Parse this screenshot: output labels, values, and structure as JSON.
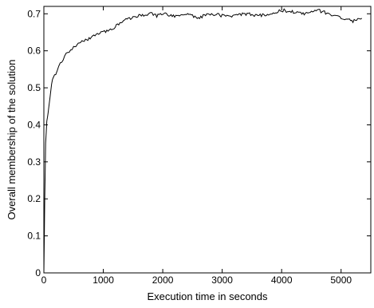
{
  "chart_data": {
    "type": "line",
    "title": "",
    "xlabel": "Execution time in seconds",
    "ylabel": "Overall membership of the solution",
    "xlim": [
      0,
      5500
    ],
    "ylim": [
      0,
      0.72
    ],
    "x_ticks": [
      0,
      1000,
      2000,
      3000,
      4000,
      5000
    ],
    "y_ticks": [
      0,
      0.1,
      0.2,
      0.3,
      0.4,
      0.5,
      0.6,
      0.7
    ],
    "x_tick_labels": [
      "0",
      "1000",
      "2000",
      "3000",
      "4000",
      "5000"
    ],
    "y_tick_labels": [
      "0",
      "0.1",
      "0.2",
      "0.3",
      "0.4",
      "0.5",
      "0.6",
      "0.7"
    ],
    "grid": false,
    "line_color": "#000000",
    "series": [
      {
        "x": [
          0,
          15,
          30,
          50,
          70,
          100,
          130,
          160,
          200,
          250,
          300,
          350,
          400,
          450,
          500,
          600,
          700,
          800,
          900,
          1000,
          1100,
          1200,
          1300,
          1400,
          1500,
          1600,
          1700,
          1800,
          1900,
          2000,
          2200,
          2400,
          2600,
          2800,
          3000,
          3200,
          3400,
          3600,
          3800,
          4000,
          4200,
          4400,
          4600,
          4800,
          5000,
          5100,
          5200,
          5300,
          5350
        ],
        "y": [
          0.0,
          0.2,
          0.35,
          0.41,
          0.43,
          0.47,
          0.51,
          0.53,
          0.54,
          0.56,
          0.57,
          0.585,
          0.595,
          0.6,
          0.61,
          0.62,
          0.63,
          0.635,
          0.645,
          0.65,
          0.655,
          0.665,
          0.675,
          0.685,
          0.69,
          0.695,
          0.695,
          0.7,
          0.695,
          0.7,
          0.695,
          0.7,
          0.69,
          0.7,
          0.695,
          0.695,
          0.7,
          0.695,
          0.7,
          0.71,
          0.705,
          0.7,
          0.71,
          0.7,
          0.69,
          0.685,
          0.68,
          0.685,
          0.685
        ]
      }
    ]
  }
}
